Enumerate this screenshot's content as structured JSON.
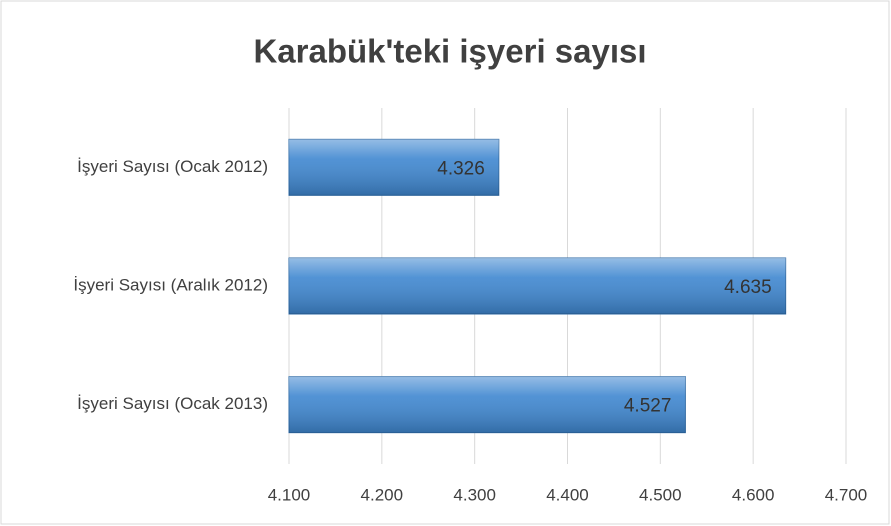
{
  "chart_data": {
    "type": "hbar",
    "title": "Karabük'teki işyeri sayısı",
    "categories": [
      "İşyeri Sayısı (Ocak 2012)",
      "İşyeri Sayısı (Aralık 2012)",
      "İşyeri Sayısı (Ocak 2013)"
    ],
    "values": [
      4326,
      4635,
      4527
    ],
    "value_labels": [
      "4.326",
      "4.635",
      "4.527"
    ],
    "color": "#3f87d0",
    "xlim": [
      4100,
      4700
    ],
    "xticks": [
      {
        "value": 4100,
        "label": "4.100"
      },
      {
        "value": 4200,
        "label": "4.200"
      },
      {
        "value": 4300,
        "label": "4.300"
      },
      {
        "value": 4400,
        "label": "4.400"
      },
      {
        "value": 4500,
        "label": "4.500"
      },
      {
        "value": 4600,
        "label": "4.600"
      },
      {
        "value": 4700,
        "label": "4.700"
      }
    ],
    "grid": true
  }
}
